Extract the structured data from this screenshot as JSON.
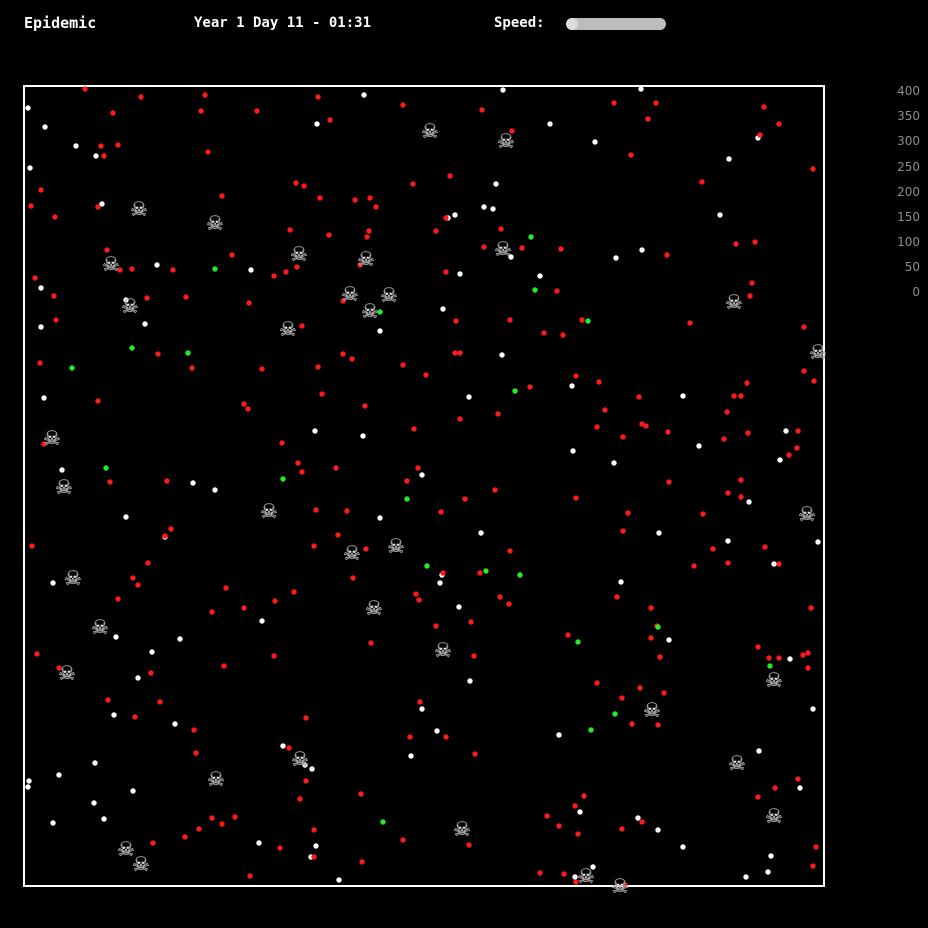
{
  "header": {
    "title": "Epidemic",
    "clock": "Year 1 Day 11 - 01:31",
    "speed_label": "Speed:"
  },
  "speed": {
    "value": 0
  },
  "axis": {
    "ticks": [
      "400",
      "350",
      "300",
      "250",
      "200",
      "150",
      "100",
      "50",
      "0"
    ]
  },
  "colors": {
    "background": "#000000",
    "border": "#ffffff",
    "healthy": "#ffffff",
    "infected": "#ff1a1a",
    "recovered": "#22ee22",
    "dead_icon": "skull-and-crossbones-icon"
  },
  "glyphs": {
    "dead": "☠"
  }
}
